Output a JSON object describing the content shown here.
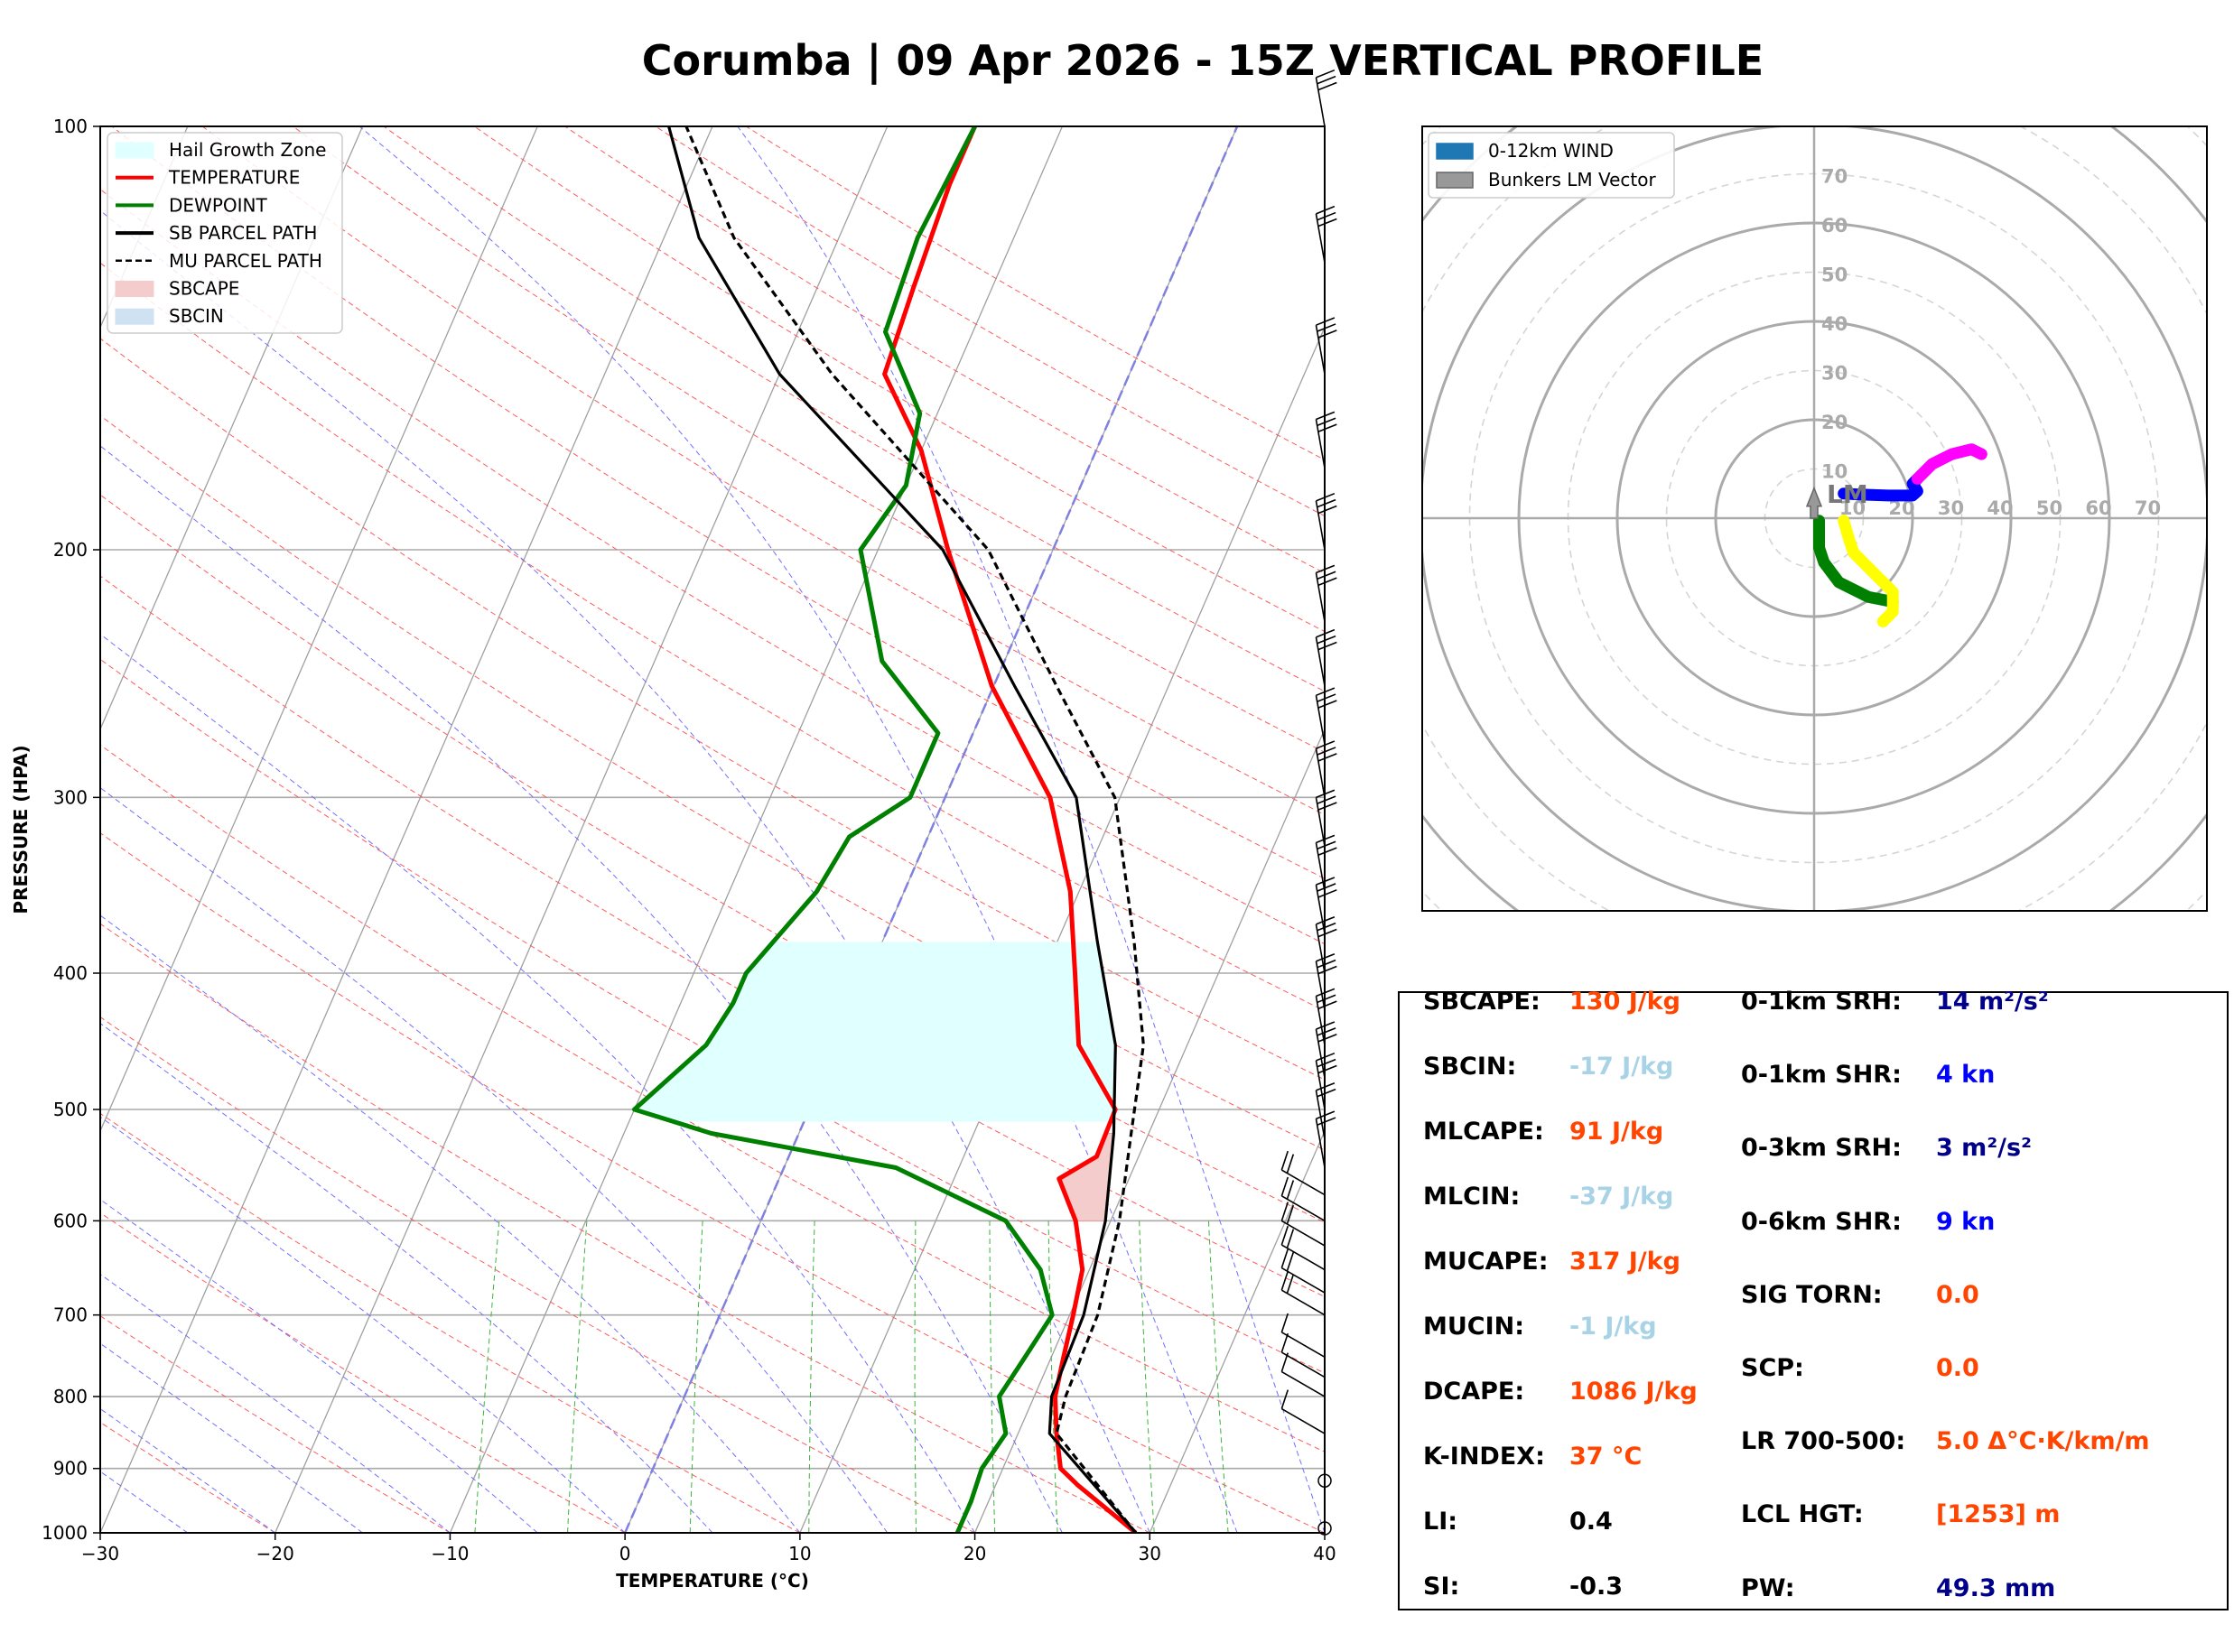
{
  "title": "Corumba | 09 Apr 2026 - 15Z VERTICAL PROFILE",
  "skewt": {
    "ylabel": "PRESSURE (HPA)",
    "xlabel": "TEMPERATURE (°C)",
    "pressure_ticks": [
      "100",
      "200",
      "300",
      "400",
      "500",
      "600",
      "700",
      "800",
      "900",
      "1000"
    ],
    "temp_ticks": [
      "−30",
      "−20",
      "−10",
      "0",
      "10",
      "20",
      "30",
      "40"
    ],
    "legend": [
      {
        "label": "Hail Growth Zone",
        "color": "#e0ffff",
        "style": "patch"
      },
      {
        "label": "TEMPERATURE",
        "color": "#ff0000",
        "style": "line"
      },
      {
        "label": "DEWPOINT",
        "color": "#008000",
        "style": "line"
      },
      {
        "label": "SB PARCEL PATH",
        "color": "#000000",
        "style": "line"
      },
      {
        "label": "MU PARCEL PATH",
        "color": "#000000",
        "style": "dashed"
      },
      {
        "label": "SBCAPE",
        "color": "#f4cccc",
        "style": "patch"
      },
      {
        "label": "SBCIN",
        "color": "#cfe2f3",
        "style": "patch"
      }
    ]
  },
  "hodograph": {
    "legend": [
      {
        "label": "0-12km WIND",
        "color": "#1f77b4"
      },
      {
        "label": "Bunkers LM Vector",
        "color": "#999999"
      }
    ],
    "ring_labels": [
      "10",
      "20",
      "30",
      "40",
      "50",
      "60",
      "70"
    ],
    "lm_label": "LM"
  },
  "chart_data": {
    "type": "line",
    "title": "Corumba | 09 Apr 2026 - 15Z VERTICAL PROFILE",
    "xlabel": "TEMPERATURE (°C)",
    "ylabel": "PRESSURE (HPA)",
    "xlim": [
      -30,
      40
    ],
    "ylim": [
      1000,
      100
    ],
    "series": [
      {
        "name": "TEMPERATURE",
        "color": "#ff0000",
        "points": [
          [
            29.2,
            1000
          ],
          [
            24.7,
            925
          ],
          [
            23.3,
            900
          ],
          [
            22.2,
            850
          ],
          [
            21.2,
            800
          ],
          [
            20.7,
            750
          ],
          [
            20.2,
            700
          ],
          [
            19.6,
            650
          ],
          [
            18.0,
            600
          ],
          [
            16.0,
            560
          ],
          [
            17.6,
            540
          ],
          [
            17.5,
            500
          ],
          [
            13.8,
            450
          ],
          [
            11.8,
            400
          ],
          [
            9.5,
            350
          ],
          [
            6.0,
            300
          ],
          [
            -0.1,
            250
          ],
          [
            -6.0,
            200
          ],
          [
            -10.0,
            170
          ],
          [
            -14.0,
            150
          ],
          [
            -14.5,
            130
          ],
          [
            -15.0,
            110
          ],
          [
            -15.0,
            100
          ]
        ]
      },
      {
        "name": "DEWPOINT",
        "color": "#008000",
        "points": [
          [
            19.0,
            1000
          ],
          [
            19.0,
            950
          ],
          [
            18.8,
            900
          ],
          [
            19.3,
            850
          ],
          [
            18.0,
            800
          ],
          [
            18.5,
            750
          ],
          [
            19.0,
            700
          ],
          [
            17.2,
            650
          ],
          [
            14.0,
            600
          ],
          [
            6.4,
            550
          ],
          [
            -5.0,
            520
          ],
          [
            -10.0,
            500
          ],
          [
            -7.5,
            450
          ],
          [
            -7.0,
            420
          ],
          [
            -7.0,
            400
          ],
          [
            -5.0,
            350
          ],
          [
            -4.5,
            320
          ],
          [
            -2.0,
            300
          ],
          [
            -2.0,
            270
          ],
          [
            -7.0,
            240
          ],
          [
            -11.0,
            200
          ],
          [
            -10.0,
            180
          ],
          [
            -11.0,
            160
          ],
          [
            -15.0,
            140
          ],
          [
            -15.5,
            120
          ],
          [
            -15.0,
            100
          ]
        ]
      },
      {
        "name": "SB PARCEL PATH",
        "color": "#000000",
        "points": [
          [
            29.2,
            1000
          ],
          [
            21.8,
            850
          ],
          [
            21.0,
            800
          ],
          [
            20.8,
            700
          ],
          [
            19.7,
            600
          ],
          [
            18.0,
            520
          ],
          [
            15.9,
            450
          ],
          [
            12.3,
            380
          ],
          [
            7.5,
            300
          ],
          [
            1.2,
            250
          ],
          [
            -6.3,
            200
          ],
          [
            -20.0,
            150
          ],
          [
            -28.0,
            120
          ],
          [
            -32.5,
            100
          ]
        ]
      },
      {
        "name": "MU PARCEL PATH",
        "color": "#000000",
        "dashed": true,
        "points": [
          [
            29.2,
            1000
          ],
          [
            22.2,
            850
          ],
          [
            21.8,
            800
          ],
          [
            21.6,
            700
          ],
          [
            20.5,
            600
          ],
          [
            19.0,
            520
          ],
          [
            17.5,
            450
          ],
          [
            14.4,
            380
          ],
          [
            9.7,
            300
          ],
          [
            3.6,
            250
          ],
          [
            -3.7,
            200
          ],
          [
            -17.0,
            150
          ],
          [
            -26.0,
            120
          ],
          [
            -31.5,
            100
          ]
        ]
      }
    ],
    "hail_growth_zone_hpa": [
      380,
      510
    ],
    "hodograph_segments": [
      {
        "color": "#008000",
        "points": [
          [
            1,
            -0.5
          ],
          [
            1,
            -6
          ],
          [
            2,
            -9
          ],
          [
            5,
            -13
          ],
          [
            11,
            -16
          ],
          [
            16,
            -17
          ]
        ]
      },
      {
        "color": "#ffff00",
        "points": [
          [
            6,
            -0.5
          ],
          [
            7,
            -4
          ],
          [
            8,
            -7
          ],
          [
            11,
            -10
          ],
          [
            14,
            -13
          ],
          [
            16,
            -15
          ],
          [
            16,
            -19
          ],
          [
            14,
            -21
          ]
        ]
      },
      {
        "color": "#0000ff",
        "points": [
          [
            6,
            5
          ],
          [
            9,
            4.8
          ],
          [
            15,
            4.6
          ],
          [
            20,
            4.6
          ],
          [
            21,
            5.5
          ],
          [
            20,
            7
          ],
          [
            21,
            8
          ]
        ]
      },
      {
        "color": "#ff00ff",
        "points": [
          [
            21,
            8
          ],
          [
            24,
            11
          ],
          [
            28,
            13
          ],
          [
            32,
            14
          ],
          [
            34,
            13
          ]
        ]
      }
    ],
    "bunkers_lm": [
      0,
      5
    ]
  },
  "stats": {
    "left": [
      {
        "label": "SBCAPE:",
        "value": "130 J/kg",
        "color": "#ff4500"
      },
      {
        "label": "SBCIN:",
        "value": "-17 J/kg",
        "color": "#a8d3e6"
      },
      {
        "label": "MLCAPE:",
        "value": "91 J/kg",
        "color": "#ff4500"
      },
      {
        "label": "MLCIN:",
        "value": "-37 J/kg",
        "color": "#a8d3e6"
      },
      {
        "label": "MUCAPE:",
        "value": "317 J/kg",
        "color": "#ff4500"
      },
      {
        "label": "MUCIN:",
        "value": "-1 J/kg",
        "color": "#a8d3e6"
      },
      {
        "label": "DCAPE:",
        "value": "1086 J/kg",
        "color": "#ff4500"
      },
      {
        "label": "K-INDEX:",
        "value": "37 °C",
        "color": "#ff4500"
      },
      {
        "label": "LI:",
        "value": "0.4",
        "color": "#000000"
      },
      {
        "label": "SI:",
        "value": "-0.3",
        "color": "#000000"
      }
    ],
    "right": [
      {
        "label": "0-1km SRH:",
        "value": "14 m²/s²",
        "color": "#00008b"
      },
      {
        "label": "0-1km SHR:",
        "value": "4 kn",
        "color": "#0000ff"
      },
      {
        "label": "0-3km SRH:",
        "value": "3 m²/s²",
        "color": "#00008b"
      },
      {
        "label": "0-6km SHR:",
        "value": "9 kn",
        "color": "#0000ff"
      },
      {
        "label": "SIG TORN:",
        "value": "0.0",
        "color": "#ff4500"
      },
      {
        "label": "SCP:",
        "value": "0.0",
        "color": "#ff4500"
      },
      {
        "label": "LR 700-500:",
        "value": "5.0 Δ°C·K/km/m",
        "color": "#ff4500"
      },
      {
        "label": "LCL HGT:",
        "value": "[1253] m",
        "color": "#ff4500"
      },
      {
        "label": "PW:",
        "value": "49.3 mm",
        "color": "#00008b"
      }
    ]
  }
}
